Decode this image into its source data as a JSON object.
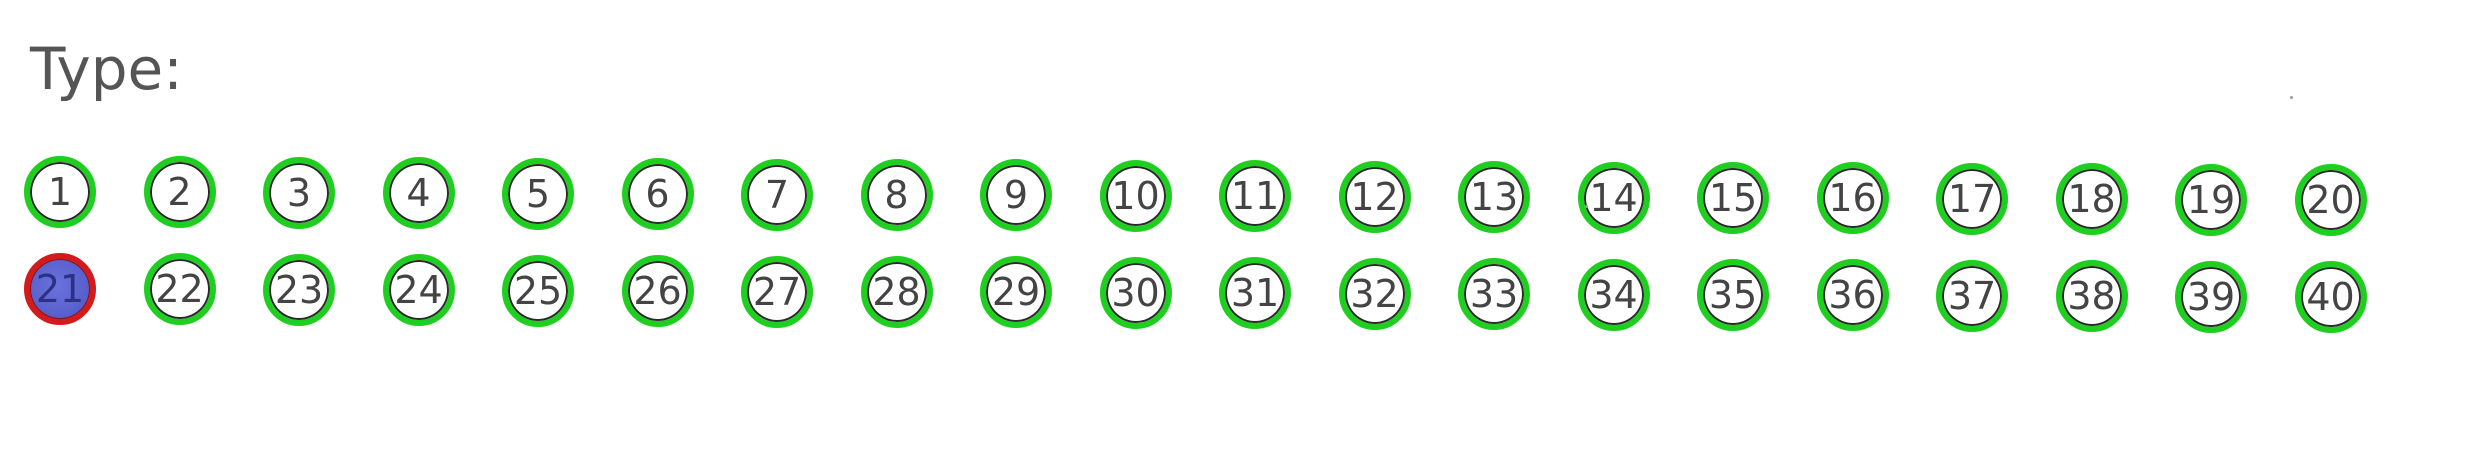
{
  "heading": "Type:",
  "colors": {
    "ring_default": "#1fcf1f",
    "ring_selected": "#d41b1b",
    "fill_selected": "#5a63cf",
    "text": "#444444"
  },
  "options": [
    {
      "label": "1",
      "selected": false
    },
    {
      "label": "2",
      "selected": false
    },
    {
      "label": "3",
      "selected": false
    },
    {
      "label": "4",
      "selected": false
    },
    {
      "label": "5",
      "selected": false
    },
    {
      "label": "6",
      "selected": false
    },
    {
      "label": "7",
      "selected": false
    },
    {
      "label": "8",
      "selected": false
    },
    {
      "label": "9",
      "selected": false
    },
    {
      "label": "10",
      "selected": false
    },
    {
      "label": "11",
      "selected": false
    },
    {
      "label": "12",
      "selected": false
    },
    {
      "label": "13",
      "selected": false
    },
    {
      "label": "14",
      "selected": false
    },
    {
      "label": "15",
      "selected": false
    },
    {
      "label": "16",
      "selected": false
    },
    {
      "label": "17",
      "selected": false
    },
    {
      "label": "18",
      "selected": false
    },
    {
      "label": "19",
      "selected": false
    },
    {
      "label": "20",
      "selected": false
    },
    {
      "label": "21",
      "selected": true
    },
    {
      "label": "22",
      "selected": false
    },
    {
      "label": "23",
      "selected": false
    },
    {
      "label": "24",
      "selected": false
    },
    {
      "label": "25",
      "selected": false
    },
    {
      "label": "26",
      "selected": false
    },
    {
      "label": "27",
      "selected": false
    },
    {
      "label": "28",
      "selected": false
    },
    {
      "label": "29",
      "selected": false
    },
    {
      "label": "30",
      "selected": false
    },
    {
      "label": "31",
      "selected": false
    },
    {
      "label": "32",
      "selected": false
    },
    {
      "label": "33",
      "selected": false
    },
    {
      "label": "34",
      "selected": false
    },
    {
      "label": "35",
      "selected": false
    },
    {
      "label": "36",
      "selected": false
    },
    {
      "label": "37",
      "selected": false
    },
    {
      "label": "38",
      "selected": false
    },
    {
      "label": "39",
      "selected": false
    },
    {
      "label": "40",
      "selected": false
    }
  ]
}
